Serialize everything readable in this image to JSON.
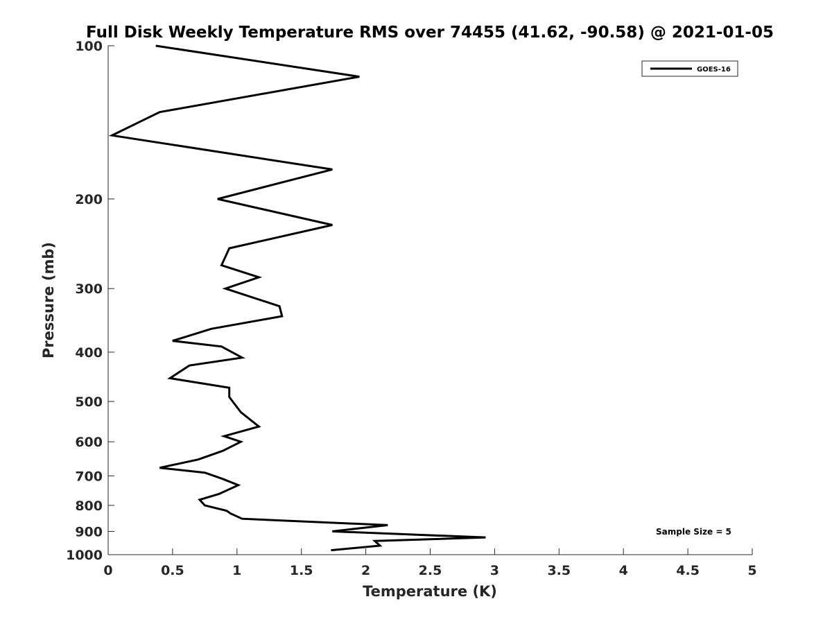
{
  "chart_data": {
    "type": "line",
    "title": "Full Disk Weekly Temperature RMS over 74455 (41.62, -90.58) @ 2021-01-05",
    "xlabel": "Temperature (K)",
    "ylabel": "Pressure (mb)",
    "xlim": [
      0,
      5
    ],
    "ylim": [
      100,
      1000
    ],
    "y_scale": "log",
    "y_reversed": true,
    "x_ticks": [
      "0",
      "0.5",
      "1",
      "1.5",
      "2",
      "2.5",
      "3",
      "3.5",
      "4",
      "4.5",
      "5"
    ],
    "y_ticks": [
      "100",
      "200",
      "300",
      "400",
      "500",
      "600",
      "700",
      "800",
      "900",
      "1000"
    ],
    "grid": false,
    "legend_position": "top-right",
    "annotation": "Sample Size = 5",
    "series": [
      {
        "name": "GOES-16",
        "color": "#000000",
        "x": [
          0.37,
          1.95,
          0.4,
          0.03,
          1.74,
          0.85,
          1.74,
          0.94,
          0.88,
          1.17,
          0.91,
          1.33,
          1.35,
          0.8,
          0.5,
          0.88,
          1.04,
          0.63,
          0.48,
          0.94,
          0.94,
          1.03,
          1.17,
          0.9,
          1.03,
          0.89,
          0.7,
          0.4,
          0.75,
          0.89,
          1.01,
          0.86,
          0.71,
          0.75,
          0.92,
          0.95,
          1.04,
          2.17,
          1.74,
          2.93,
          2.07,
          2.11,
          1.73
        ],
        "y": [
          100,
          115,
          135,
          150,
          175,
          200,
          225,
          250,
          270,
          285,
          300,
          325,
          340,
          360,
          380,
          390,
          410,
          425,
          450,
          470,
          490,
          525,
          560,
          585,
          600,
          625,
          650,
          675,
          690,
          710,
          730,
          760,
          780,
          800,
          820,
          830,
          850,
          875,
          900,
          925,
          940,
          960,
          980
        ]
      }
    ]
  }
}
